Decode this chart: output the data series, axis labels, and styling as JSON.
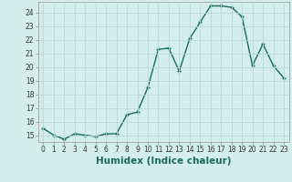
{
  "x": [
    0,
    1,
    2,
    3,
    4,
    5,
    6,
    7,
    8,
    9,
    10,
    11,
    12,
    13,
    14,
    15,
    16,
    17,
    18,
    19,
    20,
    21,
    22,
    23
  ],
  "y": [
    15.5,
    15.0,
    14.7,
    15.1,
    15.0,
    14.9,
    15.1,
    15.1,
    16.5,
    16.7,
    18.5,
    21.3,
    21.4,
    19.7,
    22.1,
    23.3,
    24.5,
    24.5,
    24.4,
    23.7,
    20.1,
    21.7,
    20.1,
    19.2
  ],
  "line_color": "#1a6b5a",
  "marker": "+",
  "marker_size": 3.5,
  "bg_color": "#d4eeec",
  "grid_color": "#b8d8d6",
  "xlabel": "Humidex (Indice chaleur)",
  "xlim": [
    -0.5,
    23.5
  ],
  "ylim": [
    14.5,
    24.8
  ],
  "yticks": [
    15,
    16,
    17,
    18,
    19,
    20,
    21,
    22,
    23,
    24
  ],
  "xticks": [
    0,
    1,
    2,
    3,
    4,
    5,
    6,
    7,
    8,
    9,
    10,
    11,
    12,
    13,
    14,
    15,
    16,
    17,
    18,
    19,
    20,
    21,
    22,
    23
  ],
  "tick_labelsize": 5.5,
  "xlabel_fontsize": 7.5,
  "line_width": 1.0
}
